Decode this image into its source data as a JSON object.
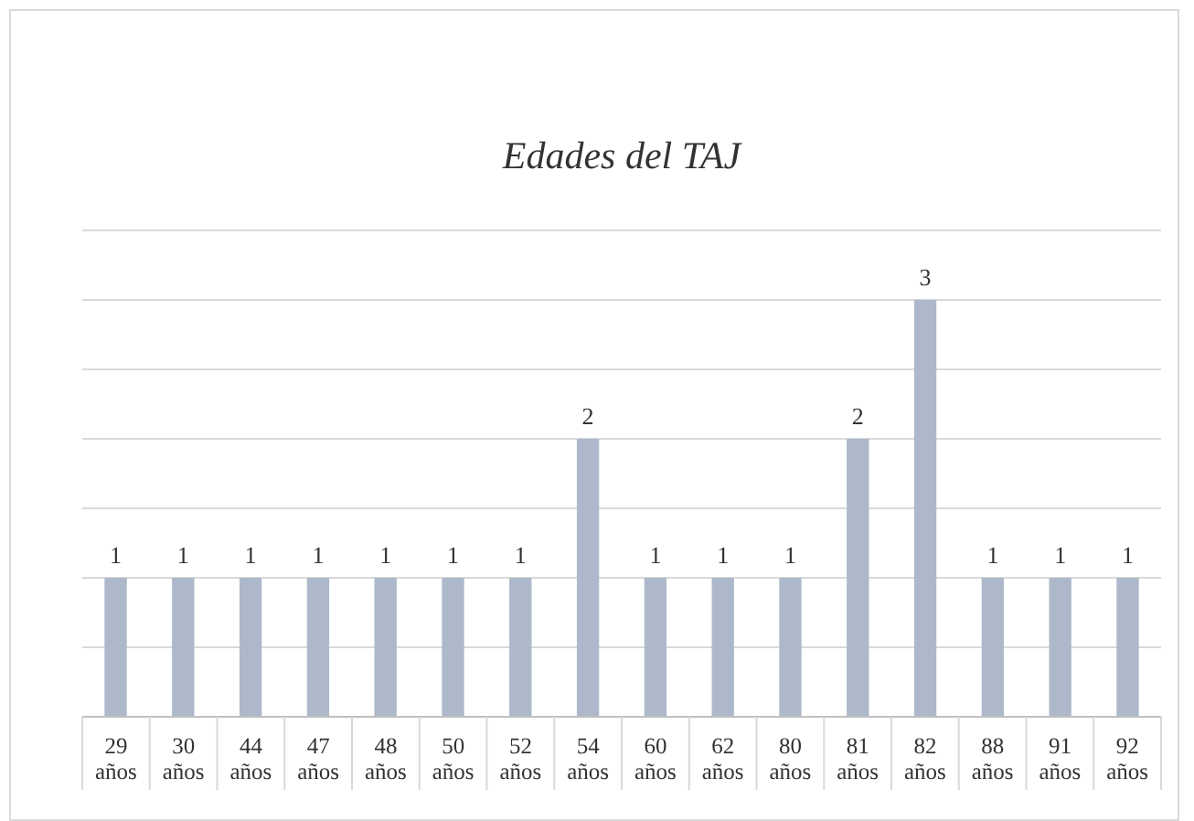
{
  "chart_data": {
    "type": "bar",
    "title": "Edades del TAJ",
    "categories": [
      "29 años",
      "30 años",
      "44 años",
      "47 años",
      "48 años",
      "50 años",
      "52 años",
      "54 años",
      "60 años",
      "62 años",
      "80 años",
      "81 años",
      "82 años",
      "88 años",
      "91 años",
      "92 años"
    ],
    "values": [
      1,
      1,
      1,
      1,
      1,
      1,
      1,
      2,
      1,
      1,
      1,
      2,
      3,
      1,
      1,
      1
    ],
    "color": "#adb9ca",
    "data_labels": true,
    "grid": "y",
    "tick_labels": "x",
    "ylim": [
      0,
      3.5
    ],
    "yticks": [
      {
        "value": 0,
        "label": null
      },
      {
        "value": 0.5,
        "label": null
      },
      {
        "value": 1,
        "label": null
      },
      {
        "value": 1.5,
        "label": null
      },
      {
        "value": 2,
        "label": null
      },
      {
        "value": 2.5,
        "label": null
      },
      {
        "value": 3,
        "label": null
      },
      {
        "value": 3.5,
        "label": null
      }
    ]
  }
}
